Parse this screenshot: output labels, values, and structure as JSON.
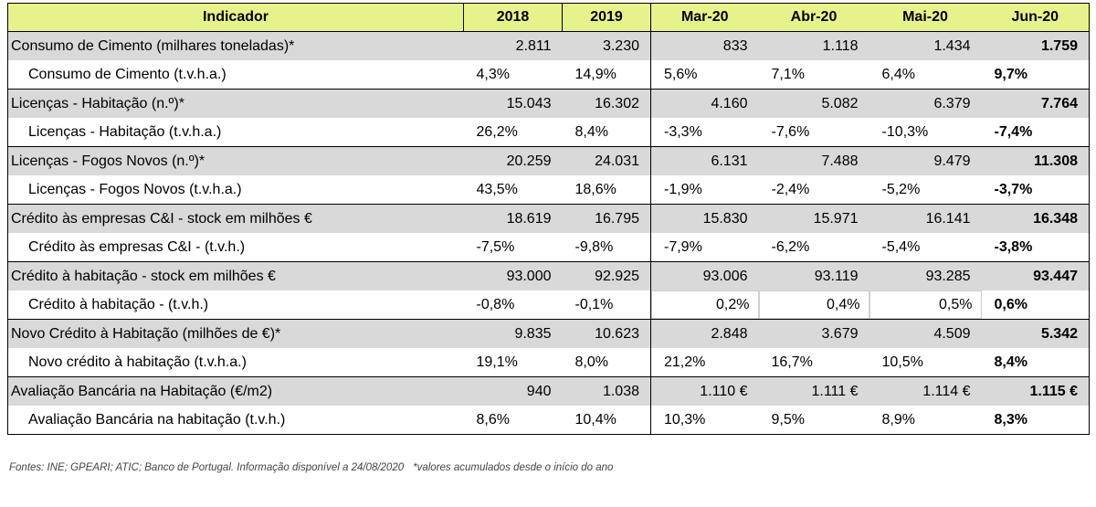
{
  "headers": [
    "Indicador",
    "2018",
    "2019",
    "Mar-20",
    "Abr-20",
    "Mai-20",
    "Jun-20"
  ],
  "rows": [
    {
      "label": "Consumo de Cimento (milhares toneladas)*",
      "values": [
        "2.811",
        "3.230",
        "833",
        "1.118",
        "1.434",
        "1.759"
      ]
    },
    {
      "label": "Consumo de Cimento (t.v.h.a.)",
      "values": [
        "4,3%",
        "14,9%",
        "5,6%",
        "7,1%",
        "6,4%",
        "9,7%"
      ]
    },
    {
      "label": "Licenças - Habitação (n.º)*",
      "values": [
        "15.043",
        "16.302",
        "4.160",
        "5.082",
        "6.379",
        "7.764"
      ]
    },
    {
      "label": "Licenças - Habitação (t.v.h.a.)",
      "values": [
        "26,2%",
        "8,4%",
        "-3,3%",
        "-7,6%",
        "-10,3%",
        "-7,4%"
      ]
    },
    {
      "label": "Licenças - Fogos Novos (n.º)*",
      "values": [
        "20.259",
        "24.031",
        "6.131",
        "7.488",
        "9.479",
        "11.308"
      ]
    },
    {
      "label": "Licenças - Fogos Novos (t.v.h.a.)",
      "values": [
        "43,5%",
        "18,6%",
        "-1,9%",
        "-2,4%",
        "-5,2%",
        "-3,7%"
      ]
    },
    {
      "label": "Crédito às empresas C&I - stock em milhões €",
      "values": [
        "18.619",
        "16.795",
        "15.830",
        "15.971",
        "16.141",
        "16.348"
      ]
    },
    {
      "label": "Crédito às empresas C&I - (t.v.h.)",
      "values": [
        "-7,5%",
        "-9,8%",
        "-7,9%",
        "-6,2%",
        "-5,4%",
        "-3,8%"
      ]
    },
    {
      "label": "Crédito à habitação - stock em milhões €",
      "values": [
        "93.000",
        "92.925",
        "93.006",
        "93.119",
        "93.285",
        "93.447"
      ]
    },
    {
      "label": "Crédito à habitação - (t.v.h.)",
      "values": [
        "-0,8%",
        "-0,1%",
        "0,2%",
        "0,4%",
        "0,5%",
        "0,6%"
      ]
    },
    {
      "label": "Novo Crédito à Habitação (milhões de €)*",
      "values": [
        "9.835",
        "10.623",
        "2.848",
        "3.679",
        "4.509",
        "5.342"
      ]
    },
    {
      "label": "Novo crédito à habitação (t.v.h.a.)",
      "values": [
        "19,1%",
        "8,0%",
        "21,2%",
        "16,7%",
        "10,5%",
        "8,4%"
      ]
    },
    {
      "label": "Avaliação Bancária na Habitação (€/m2)",
      "values": [
        "940",
        "1.038",
        "1.110 €",
        "1.111 €",
        "1.114 €",
        "1.115 €"
      ]
    },
    {
      "label": "Avaliação Bancária na habitação (t.v.h.)",
      "values": [
        "8,6%",
        "10,4%",
        "10,3%",
        "9,5%",
        "8,9%",
        "8,3%"
      ]
    }
  ],
  "footer": {
    "sources": "Fontes: INE; GPEARI; ATIC; Banco de Portugal. Informação disponível a 24/08/2020",
    "note": "*valores acumulados desde o início do ano"
  },
  "colors": {
    "header_bg": "#e8f28a",
    "group_row_bg": "#d9d9d9",
    "sub_row_bg": "#ffffff"
  }
}
